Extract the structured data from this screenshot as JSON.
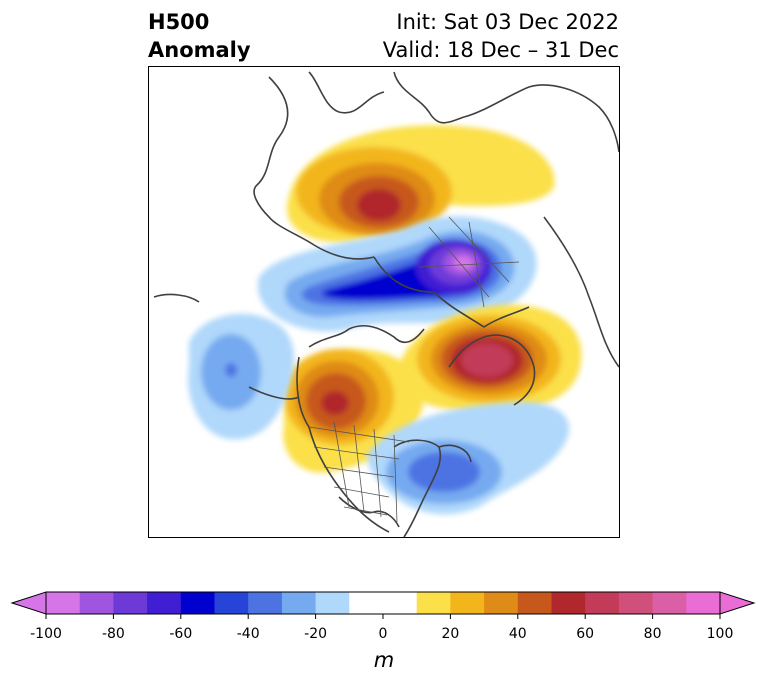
{
  "title": {
    "left_line1": "H500",
    "left_line2": "Anomaly",
    "right_line1": "Init: Sat 03 Dec 2022",
    "right_line2": "Valid: 18 Dec – 31 Dec"
  },
  "colorbar": {
    "units": "m",
    "ticks": [
      "-100",
      "-80",
      "-60",
      "-40",
      "-20",
      "0",
      "20",
      "40",
      "60",
      "80",
      "100"
    ],
    "colors": [
      "#d675e8",
      "#9f55e0",
      "#6d3ad8",
      "#3f1ed3",
      "#0000cf",
      "#2744d8",
      "#4d73e3",
      "#76aaf0",
      "#b0d8fb",
      "#ffffff",
      "#ffffff",
      "#fbe04a",
      "#f3b51c",
      "#df8b17",
      "#c7581c",
      "#b0282b",
      "#c23b58",
      "#d0507b",
      "#db5fa6",
      "#e96dd4"
    ],
    "extend": "both"
  },
  "map": {
    "projection": "polar stereographic, Northern Hemisphere",
    "anomaly_centers": [
      {
        "region": "Northern Europe / Scandinavia",
        "sign": "positive",
        "peak_m": 60
      },
      {
        "region": "Arctic Ocean / Siberia",
        "sign": "negative",
        "peak_m": -100
      },
      {
        "region": "North Atlantic (Greenland south)",
        "sign": "positive",
        "peak_m": 70
      },
      {
        "region": "Western Canada / Pacific Northwest",
        "sign": "positive",
        "peak_m": 60
      },
      {
        "region": "North Pacific (Gulf of Alaska)",
        "sign": "negative",
        "peak_m": -40
      },
      {
        "region": "Eastern United States / Western Atlantic",
        "sign": "negative",
        "peak_m": -50
      }
    ]
  }
}
